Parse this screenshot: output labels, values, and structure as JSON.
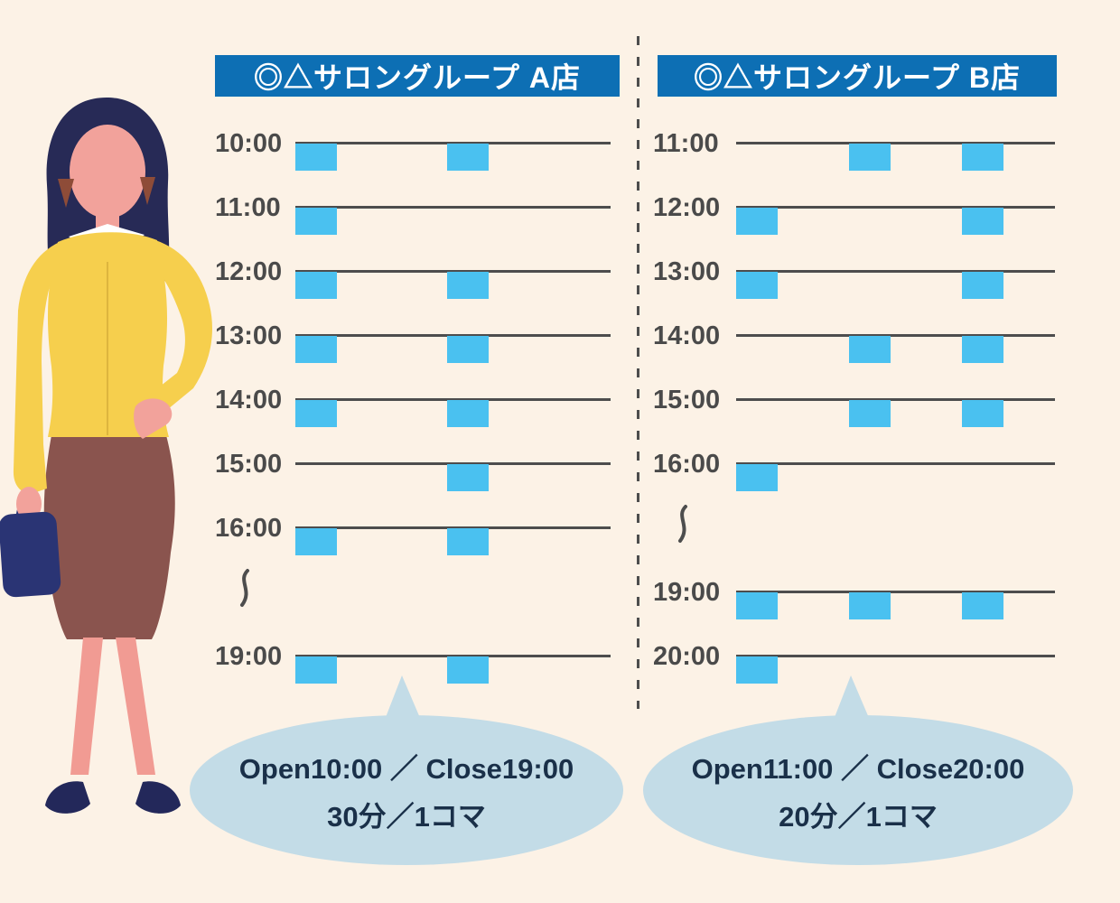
{
  "colors": {
    "background": "#FCF2E6",
    "header_bg": "#0D6FB4",
    "header_text": "#FFFFFF",
    "slot_block": "#4AC1F0",
    "line": "#4D4D4D",
    "time_text": "#4A4A4A",
    "divider": "#4D4D4D",
    "bubble_bg": "#C3DCE7",
    "bubble_text": "#1A3049"
  },
  "stores": [
    {
      "id": "store-a",
      "title": "◎△サロングループ A店",
      "open_label": "Open10:00 ／ Close19:00",
      "slot_label": "30分／1コマ",
      "slots_per_row": 2,
      "rows": [
        {
          "time": "10:00",
          "blocks": [
            0,
            1
          ]
        },
        {
          "time": "11:00",
          "blocks": [
            0
          ]
        },
        {
          "time": "12:00",
          "blocks": [
            0,
            1
          ]
        },
        {
          "time": "13:00",
          "blocks": [
            0,
            1
          ]
        },
        {
          "time": "14:00",
          "blocks": [
            0,
            1
          ]
        },
        {
          "time": "15:00",
          "blocks": [
            1
          ]
        },
        {
          "time": "16:00",
          "blocks": [
            0,
            1
          ]
        },
        {
          "time": "〜",
          "gap": true,
          "blocks": []
        },
        {
          "time": "19:00",
          "blocks": [
            0,
            1
          ]
        }
      ]
    },
    {
      "id": "store-b",
      "title": "◎△サロングループ B店",
      "open_label": "Open11:00 ／ Close20:00",
      "slot_label": "20分／1コマ",
      "slots_per_row": 3,
      "rows": [
        {
          "time": "11:00",
          "blocks": [
            1,
            2
          ]
        },
        {
          "time": "12:00",
          "blocks": [
            0,
            2
          ]
        },
        {
          "time": "13:00",
          "blocks": [
            0,
            2
          ]
        },
        {
          "time": "14:00",
          "blocks": [
            1,
            2
          ]
        },
        {
          "time": "15:00",
          "blocks": [
            1,
            2
          ]
        },
        {
          "time": "16:00",
          "blocks": [
            0
          ]
        },
        {
          "time": "〜",
          "gap": true,
          "blocks": []
        },
        {
          "time": "19:00",
          "blocks": [
            0,
            1,
            2
          ]
        },
        {
          "time": "20:00",
          "blocks": [
            0
          ]
        }
      ]
    }
  ],
  "illustration": {
    "description": "businesswoman standing with hand on hip holding a handbag"
  }
}
